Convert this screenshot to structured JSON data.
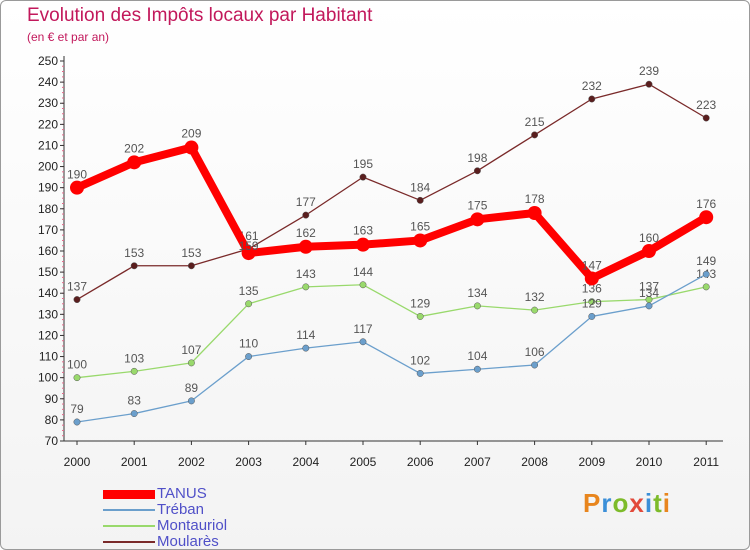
{
  "title": "Evolution des Impôts locaux par Habitant",
  "subtitle": "(en € et par an)",
  "brand": {
    "text": "Proxiti",
    "letter_colors": [
      "#e8851d",
      "#3b8fd8",
      "#7dbb2a",
      "#e24a3b",
      "#3b8fd8",
      "#7dbb2a",
      "#e8851d"
    ]
  },
  "chart_data": {
    "type": "line",
    "title": "Evolution des Impôts locaux par Habitant",
    "subtitle": "(en € et par an)",
    "x": [
      "2000",
      "2001",
      "2002",
      "2003",
      "2004",
      "2005",
      "2006",
      "2007",
      "2008",
      "2009",
      "2010",
      "2011"
    ],
    "yticks": [
      70,
      80,
      90,
      100,
      110,
      120,
      130,
      140,
      150,
      160,
      170,
      180,
      190,
      200,
      210,
      220,
      230,
      240,
      250
    ],
    "ylim": [
      70,
      250
    ],
    "grid": false,
    "legend_position": "bottom-left",
    "series": [
      {
        "name": "TANUS",
        "color": "#ff0000",
        "values": [
          190,
          202,
          209,
          159,
          162,
          163,
          165,
          175,
          178,
          147,
          160,
          176
        ]
      },
      {
        "name": "Tréban",
        "color": "#6b9fcc",
        "values": [
          79,
          83,
          89,
          110,
          114,
          117,
          102,
          104,
          106,
          129,
          134,
          149
        ]
      },
      {
        "name": "Montauriol",
        "color": "#99d96c",
        "values": [
          100,
          103,
          107,
          135,
          143,
          144,
          129,
          134,
          132,
          136,
          137,
          143
        ]
      },
      {
        "name": "Moularès",
        "color": "#7a2a2a",
        "values": [
          137,
          153,
          153,
          161,
          177,
          195,
          184,
          198,
          215,
          232,
          239,
          223
        ]
      }
    ]
  }
}
